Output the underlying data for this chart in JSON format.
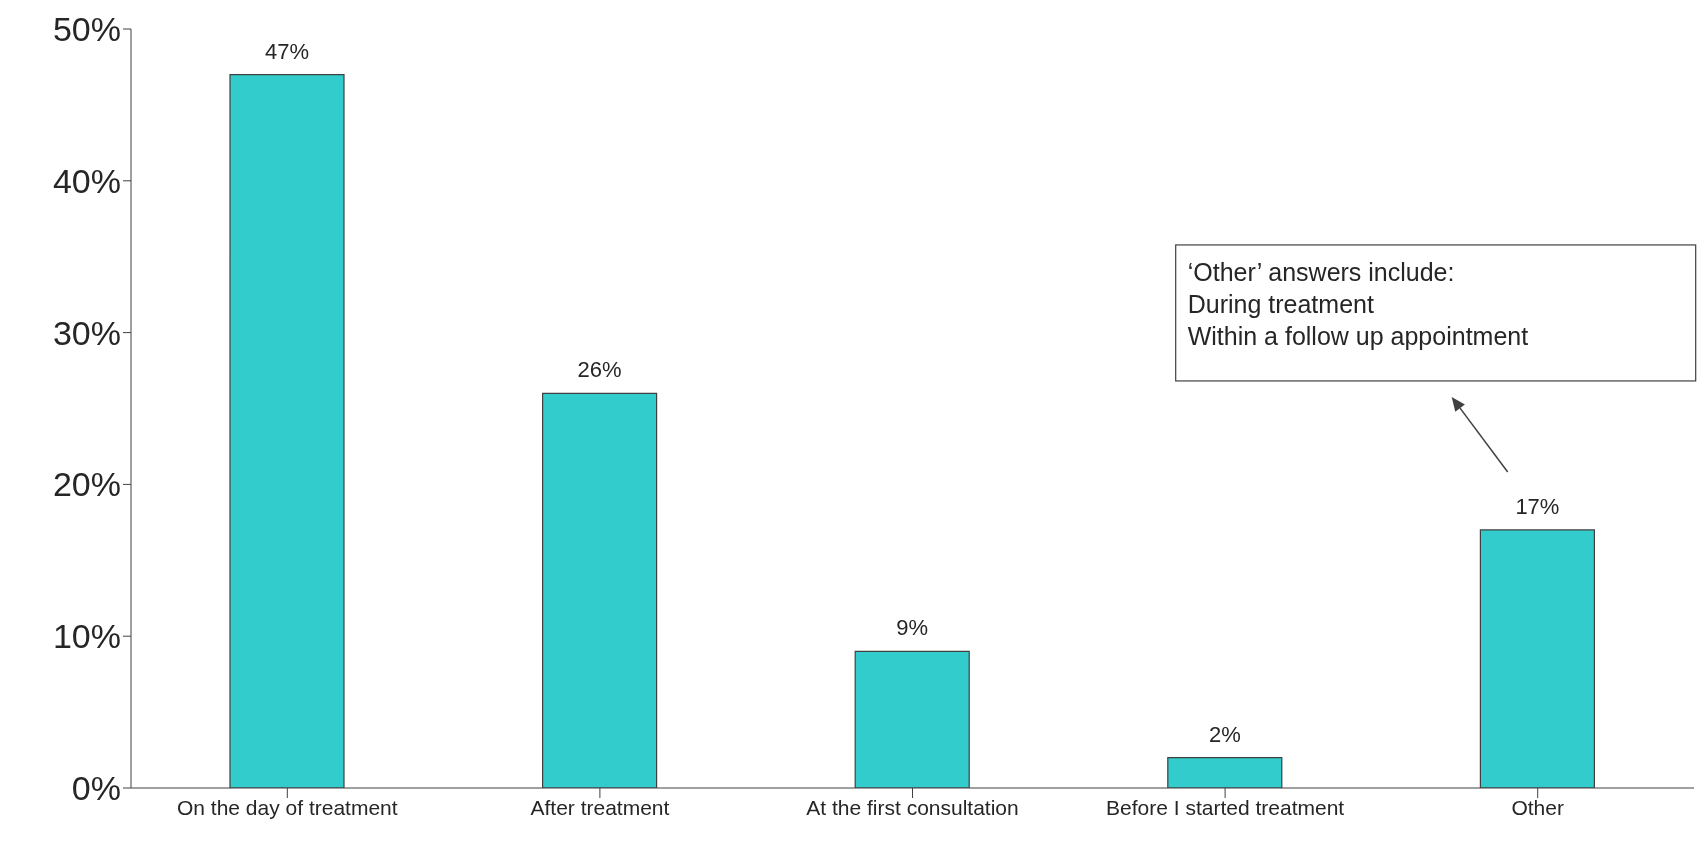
{
  "chart_data": {
    "type": "bar",
    "categories": [
      "On the day of treatment",
      "After treatment",
      "At the first consultation",
      "Before I started treatment",
      "Other"
    ],
    "values": [
      47,
      26,
      9,
      2,
      17
    ],
    "color": "#33cccc",
    "ylim": [
      0,
      50
    ],
    "yticks": [
      {
        "value": 0,
        "label": "0%"
      },
      {
        "value": 10,
        "label": "10%"
      },
      {
        "value": 20,
        "label": "20%"
      },
      {
        "value": 30,
        "label": "30%"
      },
      {
        "value": 40,
        "label": "40%"
      },
      {
        "value": 50,
        "label": "50%"
      }
    ],
    "value_labels": [
      "47%",
      "26%",
      "9%",
      "2%",
      "17%"
    ],
    "grid": false,
    "legend": false,
    "annotations": [
      "‘Other’ answers include:\nDuring treatment\nWithin a follow up appointment"
    ]
  }
}
